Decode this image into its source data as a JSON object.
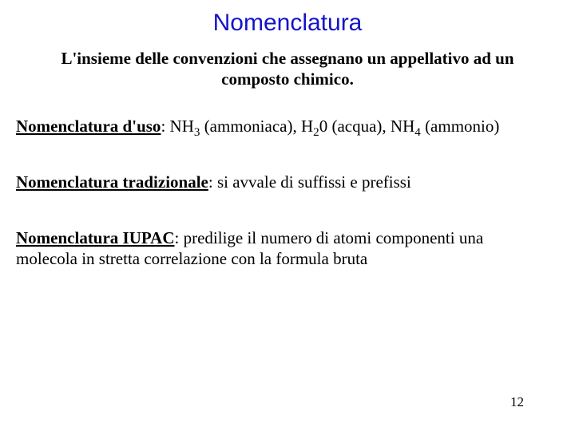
{
  "title": "Nomenclatura",
  "subtitle_line1": "L'insieme delle convenzioni che assegnano un appellativo ad un",
  "subtitle_line2": "composto chimico.",
  "uso": {
    "label": "Nomenclatura d'uso",
    "sep": ": ",
    "f1_a": "NH",
    "f1_sub": "3",
    "f1_b": " (ammoniaca), ",
    "f2_a": "H",
    "f2_sub": "2",
    "f2_b": "0 (acqua), ",
    "f3_a": "NH",
    "f3_sub": "4",
    "f3_b": " (ammonio)"
  },
  "trad": {
    "label": "Nomenclatura tradizionale",
    "rest": ": si avvale di suffissi e prefissi"
  },
  "iupac": {
    "label": "Nomenclatura IUPAC",
    "rest_line1": ": predilige il numero di atomi componenti una",
    "rest_line2": "molecola in stretta correlazione con la formula bruta"
  },
  "page_number": "12",
  "colors": {
    "title_color": "#1414c8",
    "text_color": "#000000",
    "background": "#ffffff"
  }
}
